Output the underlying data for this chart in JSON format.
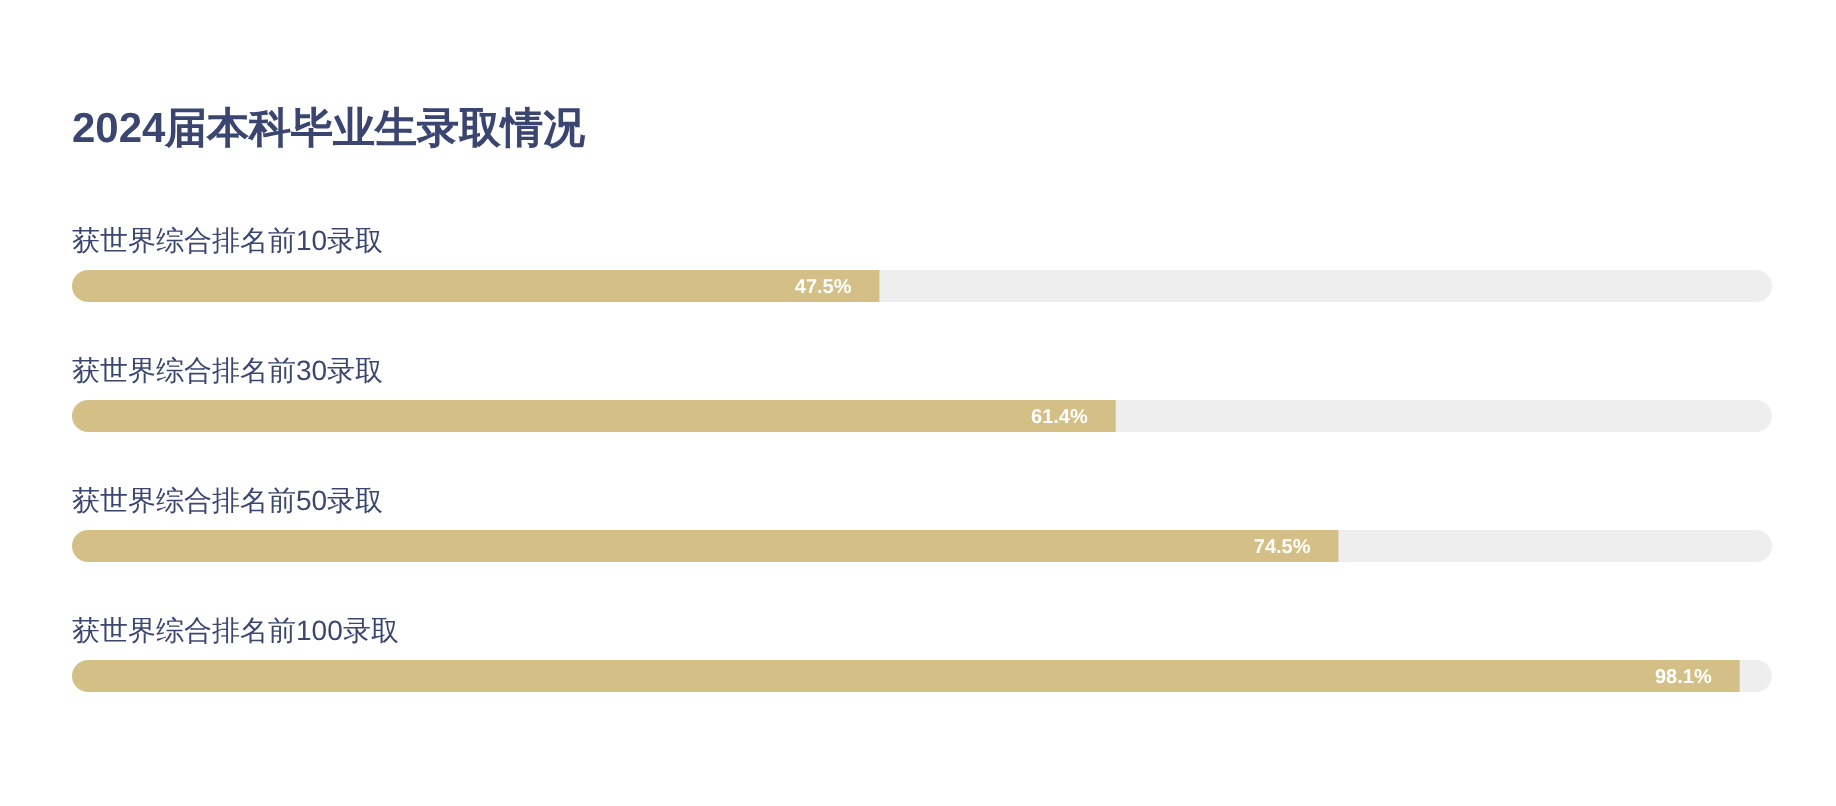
{
  "chart_data": {
    "type": "bar",
    "orientation": "horizontal",
    "title": "2024届本科毕业生录取情况",
    "categories": [
      "获世界综合排名前10录取",
      "获世界综合排名前30录取",
      "获世界综合排名前50录取",
      "获世界综合排名前100录取"
    ],
    "values": [
      47.5,
      61.4,
      74.5,
      98.1
    ],
    "value_labels": [
      "47.5%",
      "61.4%",
      "74.5%",
      "98.1%"
    ],
    "color": "#d4bf86",
    "xlim": [
      0,
      100
    ]
  }
}
